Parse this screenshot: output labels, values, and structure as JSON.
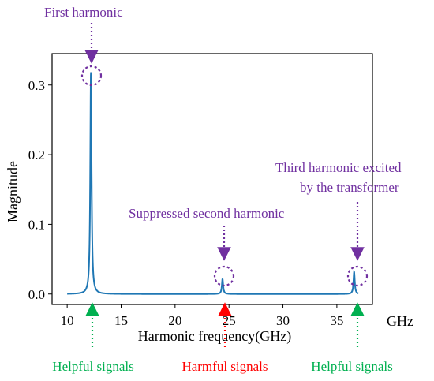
{
  "chart_data": {
    "type": "line",
    "xlabel": "Harmonic frequency(GHz)",
    "x_unit": "GHz",
    "ylabel": "Magnitude",
    "xlim": [
      8.6,
      38.3
    ],
    "ylim": [
      -0.015,
      0.345
    ],
    "x_ticks": [
      "10",
      "15",
      "20",
      "25",
      "30",
      "35"
    ],
    "y_ticks": [
      "0.0",
      "0.1",
      "0.2",
      "0.3"
    ],
    "grid": false,
    "series": [
      {
        "color": "#1f77b4",
        "x_range": [
          10,
          37
        ],
        "baseline": 0.0,
        "peaks": [
          {
            "x": 12.2,
            "y": 0.32
          },
          {
            "x": 24.4,
            "y": 0.022
          },
          {
            "x": 36.6,
            "y": 0.032
          }
        ]
      }
    ],
    "annotations": {
      "first": "First harmonic",
      "second": "Suppressed second harmonic",
      "third_line1": "Third harmonic excited",
      "third_line2": "by the transformer",
      "helpful_left": "Helpful signals",
      "harmful": "Harmful signals",
      "helpful_right": "Helpful signals"
    },
    "colors": {
      "annotation_purple": "#7030a0",
      "helpful_green": "#00b050",
      "harmful_red": "#ff0000"
    }
  }
}
